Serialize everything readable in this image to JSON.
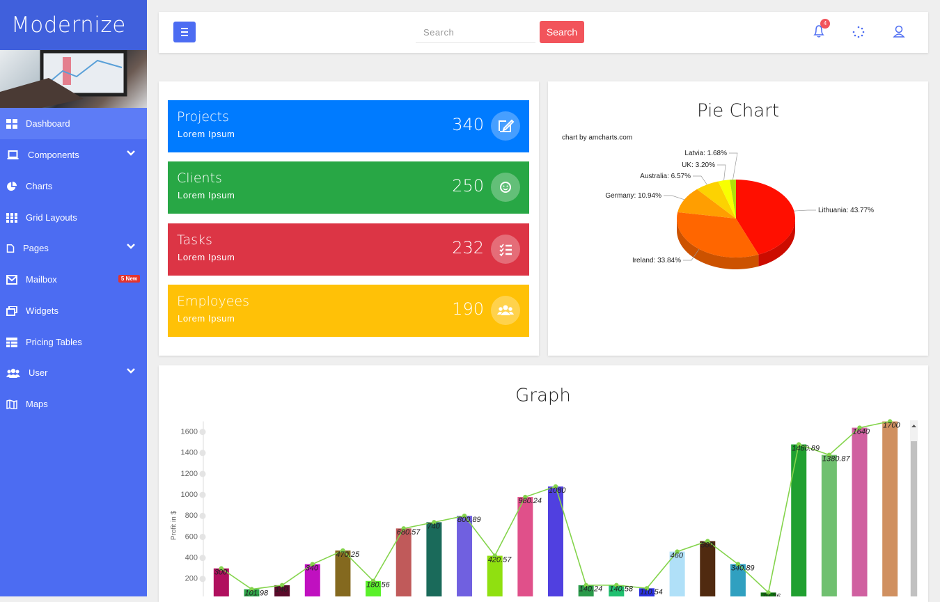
{
  "sidebar": {
    "brand": "Modernize",
    "items": [
      {
        "label": "Dashboard"
      },
      {
        "label": "Components"
      },
      {
        "label": "Charts"
      },
      {
        "label": "Grid Layouts"
      },
      {
        "label": "Pages"
      },
      {
        "label": "Mailbox",
        "badge": "5 New"
      },
      {
        "label": "Widgets"
      },
      {
        "label": "Pricing Tables"
      },
      {
        "label": "User"
      },
      {
        "label": "Maps"
      }
    ]
  },
  "topbar": {
    "search_placeholder": "Search",
    "search_button": "Search",
    "notification_count": 4
  },
  "stats": [
    {
      "title": "Projects",
      "subtitle": "Lorem Ipsum",
      "value": 340,
      "color": "#007bff"
    },
    {
      "title": "Clients",
      "subtitle": "Lorem Ipsum",
      "value": 250,
      "color": "#28a745"
    },
    {
      "title": "Tasks",
      "subtitle": "Lorem Ipsum",
      "value": 232,
      "color": "#dc3545"
    },
    {
      "title": "Employees",
      "subtitle": "Lorem Ipsum",
      "value": 190,
      "color": "#ffc107"
    }
  ],
  "chart_data": [
    {
      "type": "pie",
      "title": "Pie Chart",
      "credit": "chart by amcharts.com",
      "categories": [
        "Lithuania",
        "Ireland",
        "Germany",
        "Australia",
        "UK",
        "Latvia"
      ],
      "values": [
        43.77,
        33.84,
        10.94,
        6.57,
        3.2,
        1.68
      ],
      "value_labels": [
        "43.77%",
        "33.84%",
        "10.94%",
        "6.57%",
        "3.20%",
        "1.68%"
      ],
      "colors": [
        "#ff0f00",
        "#ff6600",
        "#ff9e01",
        "#fcd202",
        "#f8ff01",
        "#b0de09"
      ]
    },
    {
      "type": "bar",
      "title": "Graph",
      "y_label": "Profit in $",
      "values": [
        300,
        101.98,
        140,
        340,
        470.25,
        180.56,
        680.57,
        740,
        800.89,
        420.57,
        980.24,
        1080,
        140.24,
        140.58,
        110.54,
        460,
        560,
        340.89,
        70.26,
        1480.89,
        1380.87,
        1640,
        1700
      ],
      "colors": [
        "#b0105e",
        "#2fa54a",
        "#5a0a2a",
        "#c010c0",
        "#84691f",
        "#5af02a",
        "#c05a5a",
        "#1a6a5a",
        "#7060e0",
        "#90e010",
        "#e0508a",
        "#5040e0",
        "#2a9a4a",
        "#20c070",
        "#2a30e0",
        "#b0e0f8",
        "#502a10",
        "#30a0c0",
        "#107010",
        "#20a030",
        "#70c070",
        "#d060a0",
        "#d09060"
      ],
      "line_color": "#84d44c",
      "ylim": [
        0,
        1700
      ],
      "yticks": [
        200,
        400,
        600,
        800,
        1000,
        1200,
        1400,
        1600
      ]
    }
  ]
}
